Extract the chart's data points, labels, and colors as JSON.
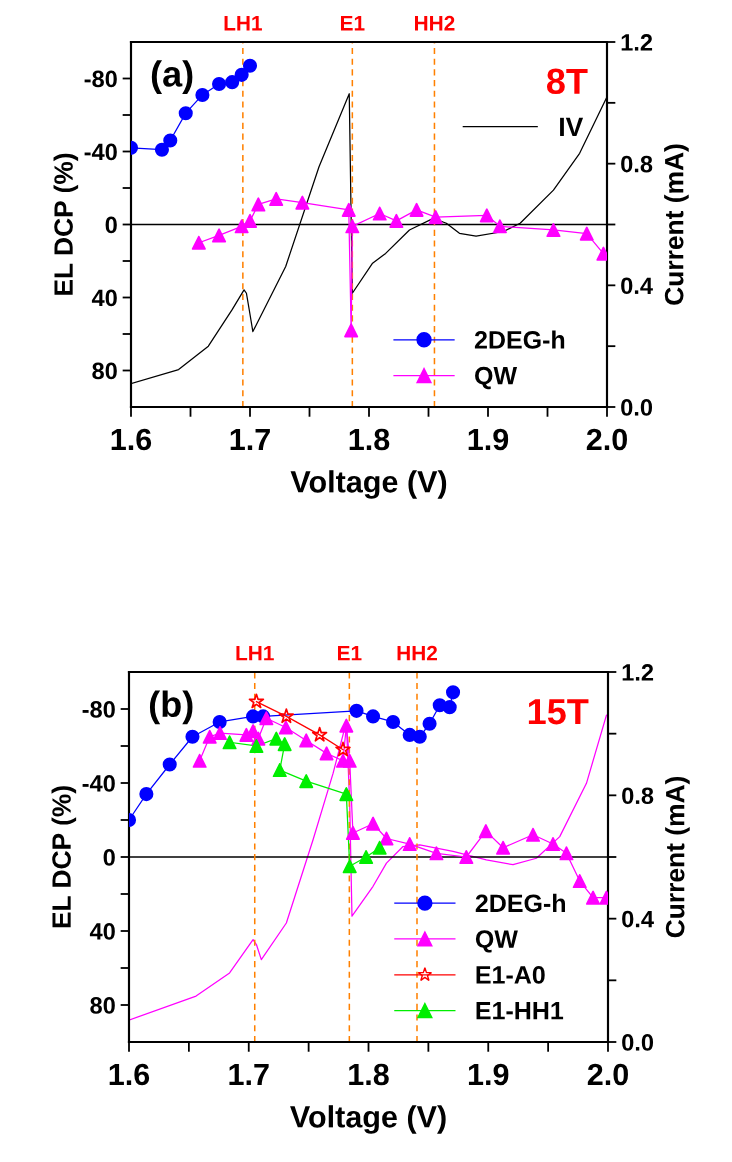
{
  "chart_data": [
    {
      "type": "line",
      "xlabel": "Voltage (V)",
      "ylabel": "EL DCP (%)",
      "y2label": "Current (mA)",
      "annotations": [
        "(a)",
        "8T"
      ],
      "xlim": [
        1.6,
        2.0
      ],
      "xticks": [
        1.6,
        {
          "value": 1.65,
          "label": null
        },
        1.7,
        {
          "value": 1.75,
          "label": null
        },
        1.8,
        {
          "value": 1.85,
          "label": null
        },
        1.9,
        {
          "value": 1.95,
          "label": null
        },
        {
          "value": 2.0,
          "label": "2.0"
        }
      ],
      "ylim": [
        100,
        -100
      ],
      "yticks": [
        -80,
        {
          "value": -60,
          "label": null
        },
        -40,
        {
          "value": -20,
          "label": null
        },
        0,
        {
          "value": 20,
          "label": null
        },
        40,
        {
          "value": 60,
          "label": null
        },
        80
      ],
      "y2lim": [
        0,
        1.2
      ],
      "y2ticks": [
        {
          "value": 0,
          "label": "0.0"
        },
        {
          "value": 0.2,
          "label": null
        },
        0.4,
        {
          "value": 0.6,
          "label": null
        },
        0.8,
        {
          "value": 1.0,
          "label": null
        },
        1.2
      ],
      "legend": "bottom right",
      "grid": false,
      "ref_lines": [
        {
          "axis": "y",
          "value": 0,
          "color": "#000000",
          "line_style": "solid"
        },
        {
          "axis": "x",
          "value": 1.694,
          "label": "LH1",
          "color": "#ff8000",
          "line_style": "dashed"
        },
        {
          "axis": "x",
          "value": 1.786,
          "label": "E1",
          "color": "#ff8000",
          "line_style": "dashed"
        },
        {
          "axis": "x",
          "value": 1.855,
          "label": "HH2",
          "color": "#ff8000",
          "line_style": "dashed"
        }
      ],
      "series": [
        {
          "name": "2DEG-h",
          "color": "#0000ff",
          "marker": "circle",
          "x": [
            1.6,
            1.626,
            1.633,
            1.646,
            1.66,
            1.674,
            1.685,
            1.693,
            1.7
          ],
          "values": [
            -42,
            -41,
            -46,
            -61,
            -71,
            -77,
            -78,
            -82,
            -87
          ]
        },
        {
          "name": "QW",
          "color": "#ff00ff",
          "marker": "triangle",
          "x": [
            1.657,
            1.674,
            1.693,
            1.7,
            1.707,
            1.722,
            1.744,
            1.783,
            1.785,
            1.786,
            1.809,
            1.823,
            1.84,
            1.856,
            1.899,
            1.91,
            1.955,
            1.983,
            1.997
          ],
          "values": [
            10,
            6,
            1,
            -2,
            -11,
            -14,
            -12,
            -8,
            58,
            1,
            -6,
            -2,
            -8,
            -4,
            -5,
            1,
            3,
            5,
            16
          ]
        },
        {
          "name": "IV",
          "color": "#000000",
          "marker": "none",
          "axis": "y2",
          "x": [
            1.6,
            1.64,
            1.665,
            1.685,
            1.695,
            1.697,
            1.6996,
            1.7024,
            1.73,
            1.758,
            1.7834,
            1.785,
            1.786,
            1.803,
            1.814,
            1.834,
            1.854,
            1.865,
            1.876,
            1.89,
            1.913,
            1.927,
            1.955,
            1.977,
            2.0
          ],
          "values": [
            0.077,
            0.123,
            0.2,
            0.32,
            0.385,
            0.374,
            0.314,
            0.248,
            0.462,
            0.79,
            1.03,
            0.62,
            0.374,
            0.473,
            0.505,
            0.582,
            0.62,
            0.604,
            0.571,
            0.562,
            0.577,
            0.604,
            0.713,
            0.834,
            1.02
          ]
        }
      ]
    },
    {
      "type": "line",
      "xlabel": "Voltage (V)",
      "ylabel": "EL DCP (%)",
      "y2label": "Current (mA)",
      "annotations": [
        "(b)",
        "15T"
      ],
      "xlim": [
        1.6,
        2.0
      ],
      "xticks": [
        1.6,
        {
          "value": 1.65,
          "label": null
        },
        1.7,
        {
          "value": 1.75,
          "label": null
        },
        1.8,
        {
          "value": 1.85,
          "label": null
        },
        1.9,
        {
          "value": 1.95,
          "label": null
        },
        {
          "value": 2.0,
          "label": "2.0"
        }
      ],
      "ylim": [
        100,
        -100
      ],
      "yticks": [
        -80,
        {
          "value": -60,
          "label": null
        },
        -40,
        {
          "value": -20,
          "label": null
        },
        0,
        {
          "value": 20,
          "label": null
        },
        40,
        {
          "value": 60,
          "label": null
        },
        80
      ],
      "y2lim": [
        0,
        1.2
      ],
      "y2ticks": [
        {
          "value": 0,
          "label": "0.0"
        },
        {
          "value": 0.2,
          "label": null
        },
        0.4,
        {
          "value": 0.6,
          "label": null
        },
        0.8,
        {
          "value": 1.0,
          "label": null
        },
        1.2
      ],
      "legend": "bottom right",
      "grid": false,
      "ref_lines": [
        {
          "axis": "y",
          "value": 0,
          "color": "#000000",
          "line_style": "solid"
        },
        {
          "axis": "x",
          "value": 1.705,
          "label": "LH1",
          "color": "#ff8000",
          "line_style": "dashed"
        },
        {
          "axis": "x",
          "value": 1.784,
          "label": "E1",
          "color": "#ff8000",
          "line_style": "dashed"
        },
        {
          "axis": "x",
          "value": 1.8405,
          "label": "HH2",
          "color": "#ff8000",
          "line_style": "dashed"
        }
      ],
      "series": [
        {
          "name": "2DEG-h",
          "color": "#0000ff",
          "marker": "circle",
          "x": [
            1.6,
            1.6145,
            1.634,
            1.653,
            1.6757,
            1.7036,
            1.712,
            1.79,
            1.8038,
            1.8205,
            1.8344,
            1.8428,
            1.851,
            1.8595,
            1.8678,
            1.8706
          ],
          "values": [
            -20,
            -34,
            -50,
            -65,
            -73,
            -76,
            -76,
            -79,
            -76,
            -73,
            -66,
            -65,
            -72,
            -82,
            -81,
            -89
          ]
        },
        {
          "name": "QW",
          "color": "#ff00ff",
          "marker": "triangle",
          "x": [
            1.659,
            1.6674,
            1.676,
            1.698,
            1.7036,
            1.708,
            1.7147,
            1.731,
            1.748,
            1.765,
            1.7787,
            1.7815,
            1.7843,
            1.787,
            1.8038,
            1.815,
            1.8344,
            1.8567,
            1.8817,
            1.898,
            1.9124,
            1.9374,
            1.9541,
            1.9653,
            1.9764,
            1.9875,
            1.9987
          ],
          "values": [
            -52,
            -65,
            -67,
            -66,
            -68,
            -64,
            -75,
            -70,
            -63,
            -56,
            -52,
            -71,
            -52,
            -13,
            -18,
            -10,
            -7,
            -2,
            0,
            -14,
            -5,
            -12,
            -7,
            -2,
            13,
            22,
            22
          ]
        },
        {
          "name": "E1-A0",
          "color": "#ff0000",
          "marker": "star",
          "x": [
            1.7064,
            1.7314,
            1.7592,
            1.7787
          ],
          "values": [
            -84,
            -76,
            -66,
            -58
          ]
        },
        {
          "name": "E1-HH1",
          "color": "#00ee00",
          "marker": "triangle",
          "x": [
            1.684,
            1.7064,
            1.723,
            1.73,
            1.7259,
            1.748,
            1.7815,
            1.7843,
            1.798,
            1.8093
          ],
          "values": [
            -62,
            -60,
            -64,
            -61,
            -47,
            -41,
            -34,
            5,
            0,
            -5
          ]
        },
        {
          "color": "#ff00ff",
          "marker": "none",
          "axis": "y2",
          "x": [
            1.6,
            1.656,
            1.684,
            1.7036,
            1.7064,
            1.7105,
            1.7314,
            1.7537,
            1.7704,
            1.7815,
            1.7843,
            1.7862,
            1.8038,
            1.815,
            1.8288,
            1.8428,
            1.8706,
            1.8984,
            1.9207,
            1.9402,
            1.9597,
            1.982,
            1.9987
          ],
          "values": [
            0.071,
            0.149,
            0.224,
            0.332,
            0.316,
            0.267,
            0.386,
            0.656,
            0.871,
            1.038,
            0.774,
            0.408,
            0.505,
            0.58,
            0.634,
            0.639,
            0.618,
            0.591,
            0.575,
            0.596,
            0.666,
            0.839,
            1.06
          ]
        }
      ]
    }
  ]
}
